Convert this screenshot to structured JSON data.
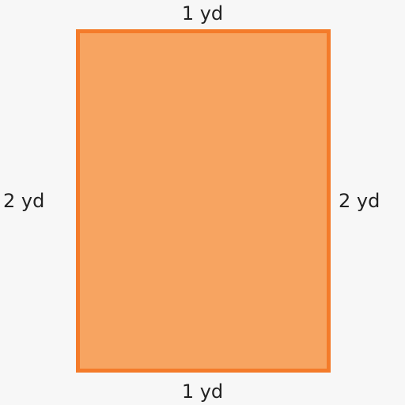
{
  "diagram": {
    "shape": "rectangle",
    "colors": {
      "fill": "#f7a461",
      "stroke": "#f47b2a",
      "background": "#f7f7f7",
      "text": "#222222"
    },
    "labels": {
      "top": "1 yd",
      "bottom": "1 yd",
      "left": "2 yd",
      "right": "2 yd"
    }
  }
}
